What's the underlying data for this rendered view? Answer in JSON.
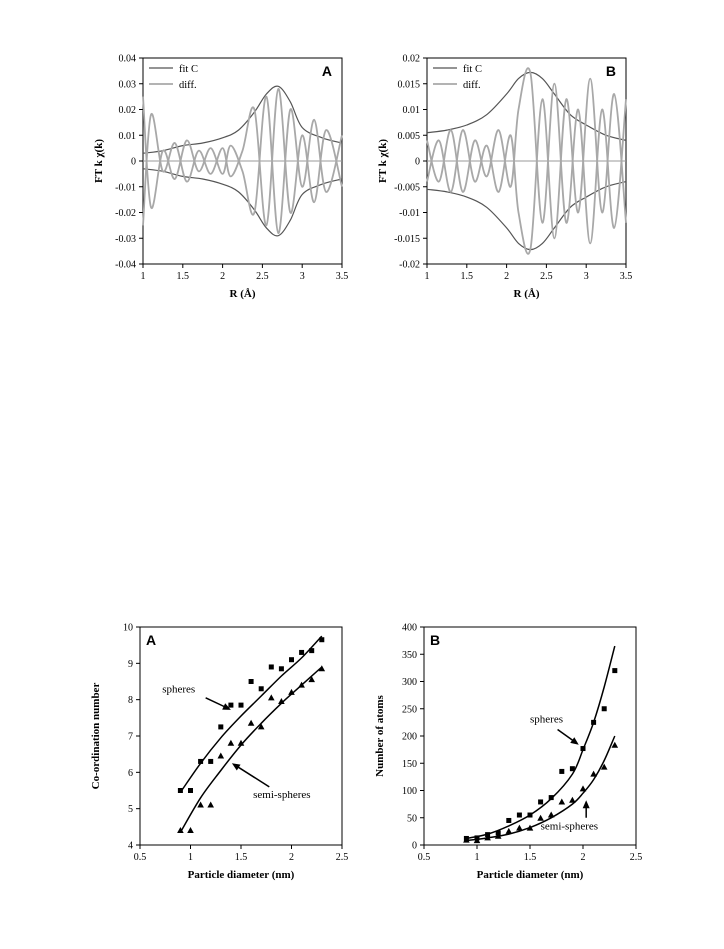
{
  "chart_data": [
    {
      "type": "line",
      "panel": "A",
      "xlabel": "R (Å)",
      "ylabel": "FT k χ(k)",
      "xlim": [
        1,
        3.5
      ],
      "ylim": [
        -0.04,
        0.04
      ],
      "xticks": [
        "1",
        "1.5",
        "2",
        "2.5",
        "3",
        "3.5"
      ],
      "yticks": [
        "0.04",
        "0.03",
        "0.02",
        "0.01",
        "0",
        "-0.01",
        "-0.02",
        "-0.03",
        "-0.04"
      ],
      "legend": [
        "fit C",
        "diff."
      ],
      "legend_position": "top-left",
      "series": [
        {
          "name": "fit C",
          "x": [
            1.0,
            1.25,
            1.5,
            1.75,
            2.0,
            2.2,
            2.4,
            2.55,
            2.7,
            2.85,
            3.0,
            3.25,
            3.5
          ],
          "y": [
            0.003,
            0.004,
            0.006,
            0.007,
            0.009,
            0.012,
            0.019,
            0.026,
            0.029,
            0.023,
            0.013,
            0.009,
            0.007
          ]
        },
        {
          "name": "diff.",
          "x": [
            1.0,
            1.1,
            1.25,
            1.4,
            1.55,
            1.7,
            1.85,
            2.0,
            2.1,
            2.25,
            2.4,
            2.55,
            2.7,
            2.85,
            3.0,
            3.15,
            3.3,
            3.5
          ],
          "y": [
            -0.025,
            0.018,
            -0.004,
            0.007,
            -0.008,
            0.004,
            -0.005,
            0.005,
            -0.006,
            0.004,
            0.02,
            -0.025,
            0.028,
            -0.02,
            0.01,
            -0.016,
            0.012,
            -0.01
          ]
        }
      ]
    },
    {
      "type": "line",
      "panel": "B",
      "xlabel": "R (Å)",
      "ylabel": "FT k χ(k)",
      "xlim": [
        1,
        3.5
      ],
      "ylim": [
        -0.02,
        0.02
      ],
      "xticks": [
        "1",
        "1.5",
        "2",
        "2.5",
        "3",
        "3.5"
      ],
      "yticks": [
        "0.02",
        "0.015",
        "0.01",
        "0.005",
        "0",
        "-0.005",
        "-0.01",
        "-0.015",
        "-0.02"
      ],
      "legend": [
        "fit C",
        "diff."
      ],
      "legend_position": "top-left",
      "series": [
        {
          "name": "fit C",
          "x": [
            1.0,
            1.25,
            1.5,
            1.75,
            2.0,
            2.15,
            2.3,
            2.45,
            2.6,
            2.8,
            3.0,
            3.25,
            3.5
          ],
          "y": [
            0.0055,
            0.006,
            0.007,
            0.009,
            0.013,
            0.016,
            0.0172,
            0.016,
            0.013,
            0.009,
            0.007,
            0.005,
            0.004
          ]
        },
        {
          "name": "diff.",
          "x": [
            1.0,
            1.15,
            1.3,
            1.45,
            1.6,
            1.75,
            1.9,
            2.05,
            2.15,
            2.3,
            2.45,
            2.6,
            2.75,
            2.9,
            3.05,
            3.2,
            3.35,
            3.5
          ],
          "y": [
            0.004,
            -0.004,
            0.006,
            -0.006,
            0.004,
            -0.003,
            0.006,
            -0.005,
            0.01,
            0.017,
            -0.012,
            0.015,
            -0.012,
            0.01,
            -0.016,
            0.01,
            -0.013,
            0.012
          ]
        }
      ]
    },
    {
      "type": "scatter",
      "panel": "A",
      "xlabel": "Particle diameter (nm)",
      "ylabel": "Co-ordination number",
      "xlim": [
        0.5,
        2.5
      ],
      "ylim": [
        4,
        10
      ],
      "xticks": [
        "0.5",
        "1",
        "1.5",
        "2",
        "2.5"
      ],
      "yticks": [
        "10",
        "9",
        "8",
        "7",
        "6",
        "5",
        "4"
      ],
      "annotations": [
        "spheres",
        "semi-spheres"
      ],
      "series": [
        {
          "name": "spheres",
          "marker": "square",
          "x": [
            0.9,
            1.0,
            1.1,
            1.2,
            1.3,
            1.4,
            1.5,
            1.6,
            1.7,
            1.8,
            1.9,
            2.0,
            2.1,
            2.2,
            2.3
          ],
          "y": [
            5.5,
            5.5,
            6.3,
            6.3,
            7.25,
            7.85,
            7.85,
            8.5,
            8.3,
            8.9,
            8.85,
            9.1,
            9.3,
            9.35,
            9.65
          ],
          "fit": {
            "x": [
              0.9,
              1.1,
              1.3,
              1.5,
              1.7,
              1.9,
              2.1,
              2.3
            ],
            "y": [
              5.45,
              6.25,
              6.95,
              7.55,
              8.1,
              8.65,
              9.15,
              9.75
            ]
          }
        },
        {
          "name": "semi-spheres",
          "marker": "triangle",
          "x": [
            0.9,
            1.0,
            1.1,
            1.2,
            1.3,
            1.4,
            1.5,
            1.6,
            1.7,
            1.8,
            1.9,
            2.0,
            2.1,
            2.2,
            2.3
          ],
          "y": [
            4.4,
            4.4,
            5.1,
            5.1,
            6.45,
            6.8,
            6.8,
            7.35,
            7.25,
            8.05,
            7.95,
            8.2,
            8.4,
            8.55,
            8.85
          ],
          "fit": {
            "x": [
              0.9,
              1.1,
              1.3,
              1.5,
              1.7,
              1.9,
              2.1,
              2.3
            ],
            "y": [
              4.35,
              5.3,
              6.05,
              6.75,
              7.35,
              7.9,
              8.4,
              8.9
            ]
          }
        }
      ]
    },
    {
      "type": "scatter",
      "panel": "B",
      "xlabel": "Particle diameter (nm)",
      "ylabel": "Number of atoms",
      "xlim": [
        0.5,
        2.5
      ],
      "ylim": [
        0,
        400
      ],
      "xticks": [
        "0.5",
        "1",
        "1.5",
        "2",
        "2.5"
      ],
      "yticks": [
        "400",
        "350",
        "300",
        "250",
        "200",
        "150",
        "100",
        "50",
        "0"
      ],
      "annotations": [
        "spheres",
        "semi-spheres"
      ],
      "series": [
        {
          "name": "spheres",
          "marker": "square",
          "x": [
            0.9,
            1.0,
            1.1,
            1.2,
            1.3,
            1.4,
            1.5,
            1.6,
            1.7,
            1.8,
            1.9,
            2.0,
            2.1,
            2.2,
            2.3
          ],
          "y": [
            12,
            13,
            19,
            22,
            45,
            55,
            55,
            79,
            87,
            135,
            140,
            177,
            225,
            250,
            320
          ],
          "fit": {
            "x": [
              0.9,
              1.1,
              1.3,
              1.5,
              1.7,
              1.9,
              2.0,
              2.1,
              2.2,
              2.3
            ],
            "y": [
              12,
              20,
              35,
              55,
              85,
              130,
              175,
              225,
              290,
              365
            ]
          }
        },
        {
          "name": "semi-spheres",
          "marker": "triangle",
          "x": [
            0.9,
            1.0,
            1.1,
            1.2,
            1.3,
            1.4,
            1.5,
            1.6,
            1.7,
            1.8,
            1.9,
            2.0,
            2.1,
            2.2,
            2.3
          ],
          "y": [
            9,
            8,
            13,
            16,
            25,
            31,
            31,
            49,
            55,
            79,
            82,
            103,
            130,
            143,
            183
          ],
          "fit": {
            "x": [
              0.9,
              1.1,
              1.3,
              1.5,
              1.7,
              1.9,
              2.0,
              2.1,
              2.2,
              2.3
            ],
            "y": [
              8,
              13,
              20,
              32,
              50,
              75,
              95,
              120,
              155,
              200
            ]
          }
        }
      ]
    }
  ]
}
